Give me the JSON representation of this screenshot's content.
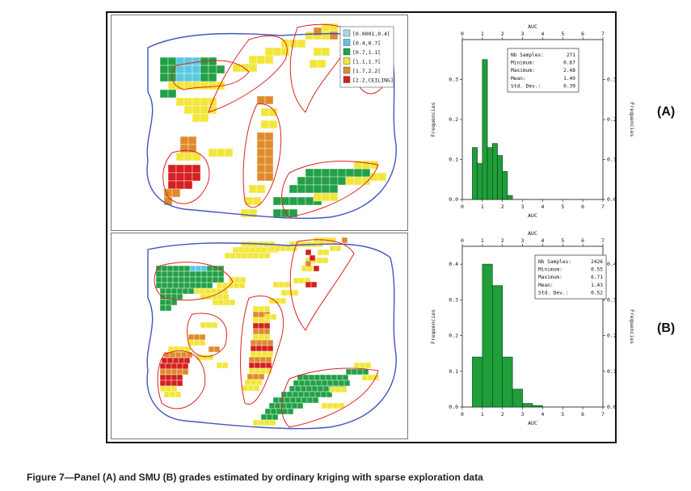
{
  "caption": "Figure 7—Panel (A) and SMU (B) grades estimated by ordinary kriging with sparse exploration data",
  "panel_labels": {
    "a": "(A)",
    "b": "(B)"
  },
  "legend": {
    "classes": [
      {
        "label": "[0.0001,0.4[",
        "color": "#a9d6e5"
      },
      {
        "label": "[0.4,0.7[",
        "color": "#5bc8e0"
      },
      {
        "label": "[0.7,1.1[",
        "color": "#22a046"
      },
      {
        "label": "[1.1,1.7[",
        "color": "#f2e63a"
      },
      {
        "label": "[1.7,2.2[",
        "color": "#e08a2c"
      },
      {
        "label": "[2.2,CEILING]",
        "color": "#d42020"
      }
    ]
  },
  "map_colors": {
    "boundary": "#4455bb",
    "contour": "#dd2222"
  },
  "histograms": {
    "a": {
      "xlabel": "AUC",
      "ylabel_left": "Frequencies",
      "ylabel_right": "Frequencies",
      "stats": [
        {
          "name": "Nb Samples:",
          "value": "271"
        },
        {
          "name": "Minimum:",
          "value": "0.67"
        },
        {
          "name": "Maximum:",
          "value": "2.48"
        },
        {
          "name": "Mean:",
          "value": "1.40"
        },
        {
          "name": "Std. Dev.:",
          "value": "0.39"
        }
      ]
    },
    "b": {
      "xlabel": "AUC",
      "ylabel_left": "Frequencies",
      "ylabel_right": "Frequencies",
      "stats": [
        {
          "name": "Nb Samples:",
          "value": "2426"
        },
        {
          "name": "Minimum:",
          "value": "0.55"
        },
        {
          "name": "Maximum:",
          "value": "6.71"
        },
        {
          "name": "Mean:",
          "value": "1.43"
        },
        {
          "name": "Std. Dev.:",
          "value": "0.52"
        }
      ]
    }
  },
  "chart_data": [
    {
      "type": "bar",
      "xlabel": "AUC",
      "ylabel": "Frequencies",
      "xlim": [
        0,
        7
      ],
      "ylim": [
        0,
        0.4
      ],
      "xticks": [
        0,
        1,
        2,
        3,
        4,
        5,
        6,
        7
      ],
      "yticks": [
        0.0,
        0.1,
        0.2,
        0.3
      ],
      "bin_width": 0.25,
      "bins": [
        {
          "x0": 0.5,
          "value": 0.13
        },
        {
          "x0": 0.75,
          "value": 0.09
        },
        {
          "x0": 1.0,
          "value": 0.35
        },
        {
          "x0": 1.25,
          "value": 0.13
        },
        {
          "x0": 1.5,
          "value": 0.14
        },
        {
          "x0": 1.75,
          "value": 0.11
        },
        {
          "x0": 2.0,
          "value": 0.07
        },
        {
          "x0": 2.25,
          "value": 0.01
        }
      ]
    },
    {
      "type": "bar",
      "xlabel": "AUC",
      "ylabel": "Frequencies",
      "xlim": [
        0,
        7
      ],
      "ylim": [
        0,
        0.45
      ],
      "xticks": [
        0,
        1,
        2,
        3,
        4,
        5,
        6,
        7
      ],
      "yticks": [
        0.0,
        0.1,
        0.2,
        0.3,
        0.4
      ],
      "bin_width": 0.5,
      "bins": [
        {
          "x0": 0.5,
          "value": 0.14
        },
        {
          "x0": 1.0,
          "value": 0.4
        },
        {
          "x0": 1.5,
          "value": 0.34
        },
        {
          "x0": 2.0,
          "value": 0.14
        },
        {
          "x0": 2.5,
          "value": 0.05
        },
        {
          "x0": 3.0,
          "value": 0.01
        },
        {
          "x0": 3.5,
          "value": 0.004
        }
      ]
    }
  ]
}
